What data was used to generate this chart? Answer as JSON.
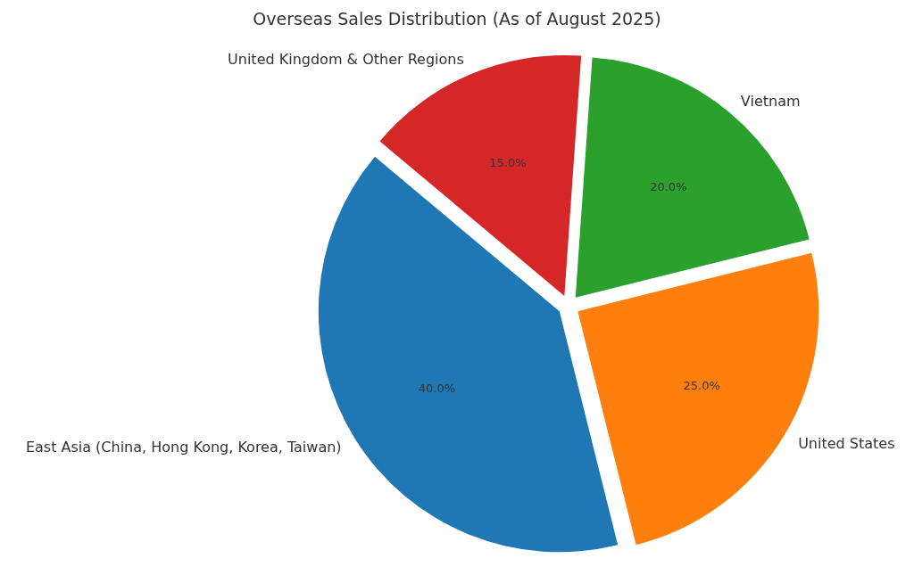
{
  "chart_data": {
    "type": "pie",
    "title": "Overseas Sales Distribution (As of August 2025)",
    "categories": [
      "East Asia (China, Hong Kong, Korea, Taiwan)",
      "United States",
      "Vietnam",
      "United Kingdom & Other Regions"
    ],
    "values": [
      40,
      25,
      20,
      15
    ],
    "colors": [
      "#1f77b4",
      "#ff7f0e",
      "#2ca02c",
      "#d62728"
    ],
    "value_labels": [
      "40.0%",
      "25.0%",
      "20.0%",
      "15.0%"
    ],
    "legend": false
  }
}
